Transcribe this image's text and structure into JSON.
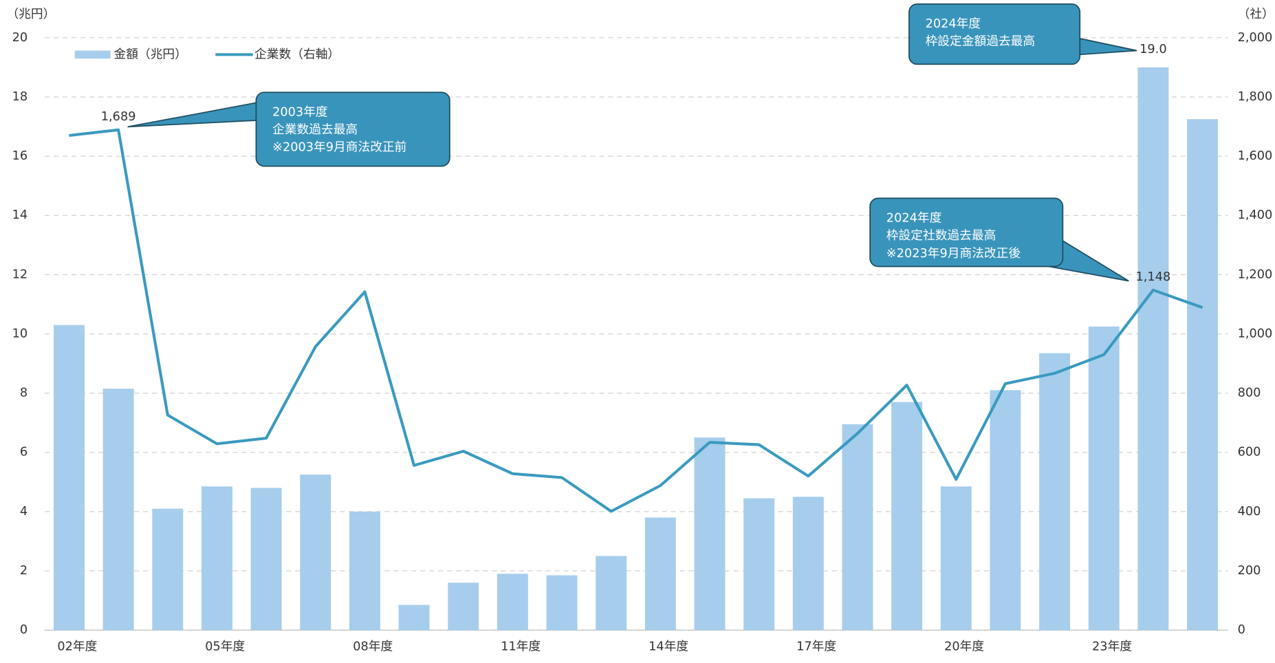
{
  "chart_data": {
    "type": "bar_line",
    "y_unit_label": "（兆円）",
    "y2_unit_label": "（社）",
    "categories": [
      "02年度",
      null,
      null,
      "05年度",
      null,
      null,
      "08年度",
      null,
      null,
      "11年度",
      null,
      null,
      "14年度",
      null,
      null,
      "17年度",
      null,
      null,
      "20年度",
      null,
      null,
      "23年度",
      null,
      null
    ],
    "series": [
      {
        "name": "金額（兆円）",
        "type": "bar",
        "color": "#a6cdec",
        "values": [
          10.3,
          8.15,
          4.1,
          4.85,
          4.8,
          5.25,
          4.0,
          0.85,
          1.6,
          1.9,
          1.85,
          2.5,
          3.8,
          6.5,
          4.45,
          4.5,
          6.95,
          7.7,
          4.85,
          8.1,
          9.35,
          10.25,
          19.0,
          17.25
        ],
        "value_labels": [
          null,
          null,
          null,
          null,
          null,
          null,
          null,
          null,
          null,
          null,
          null,
          null,
          null,
          null,
          null,
          null,
          null,
          null,
          null,
          null,
          null,
          null,
          "19.0",
          null
        ]
      },
      {
        "name": "企業数（右軸）",
        "type": "line",
        "axis": "y2",
        "color": "#3a9ac0",
        "values": [
          1670,
          1689,
          726,
          629,
          648,
          957,
          1142,
          556,
          604,
          528,
          515,
          401,
          488,
          634,
          626,
          520,
          664,
          827,
          509,
          832,
          867,
          930,
          1148,
          1089
        ],
        "value_labels": [
          null,
          "1,689",
          null,
          null,
          null,
          null,
          null,
          null,
          null,
          null,
          null,
          null,
          null,
          null,
          null,
          null,
          null,
          null,
          null,
          null,
          null,
          null,
          "1,148",
          null
        ]
      }
    ],
    "ylim": [
      0,
      20
    ],
    "yticks": [
      0,
      2,
      4,
      6,
      8,
      10,
      12,
      14,
      16,
      18,
      20
    ],
    "y2lim": [
      0,
      2000
    ],
    "y2ticks": [
      0,
      200,
      400,
      600,
      800,
      {
        "value": 1000,
        "label": "1,000"
      },
      {
        "value": 1200,
        "label": "1,200"
      },
      {
        "value": 1400,
        "label": "1,400"
      },
      {
        "value": 1600,
        "label": "1,600"
      },
      {
        "value": 1800,
        "label": "1,800"
      },
      {
        "value": 2000,
        "label": "2,000"
      }
    ],
    "grid": true,
    "legend": "top-left",
    "annotations": [
      [
        "2003年度",
        "企業数過去最高",
        "※2003年9月商法改正前"
      ],
      [
        "2024年度",
        "枠設定金額過去最高"
      ],
      [
        "2024年度",
        "枠設定社数過去最高",
        "※2023年9月商法改正後"
      ]
    ]
  }
}
